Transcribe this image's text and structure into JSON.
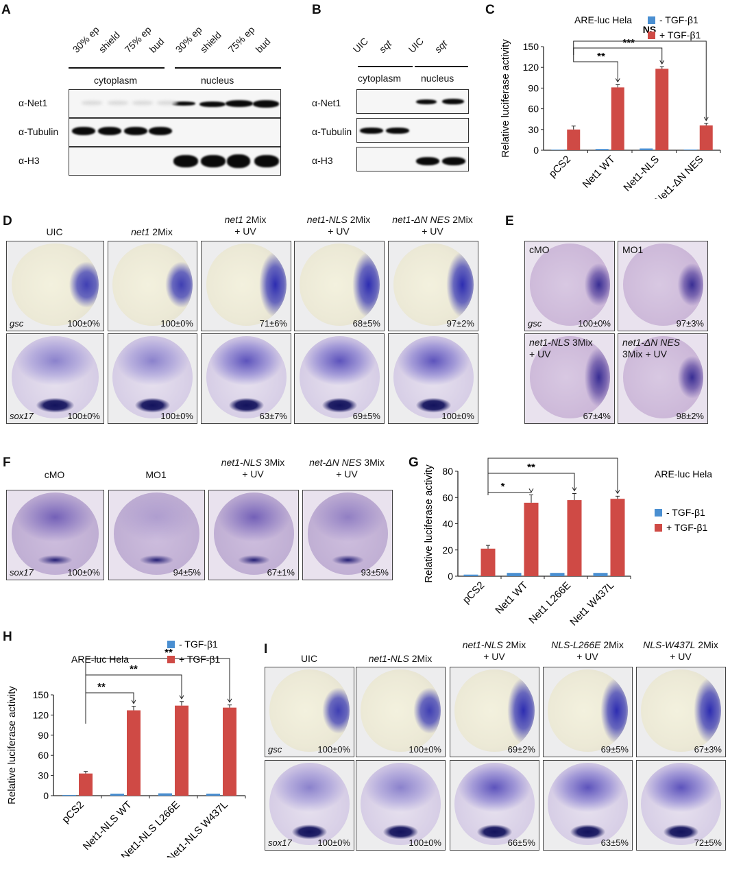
{
  "panels": {
    "A": "A",
    "B": "B",
    "C": "C",
    "D": "D",
    "E": "E",
    "F": "F",
    "G": "G",
    "H": "H",
    "I": "I"
  },
  "blotA": {
    "stages": [
      "30% ep",
      "shield",
      "75% ep",
      "bud",
      "30% ep",
      "shield",
      "75% ep",
      "bud"
    ],
    "fractions": [
      "cytoplasm",
      "nucleus"
    ],
    "rows": [
      "α-Net1",
      "α-Tubulin",
      "α-H3"
    ]
  },
  "blotB": {
    "lanes": [
      "UIC",
      "sqt",
      "UIC",
      "sqt"
    ],
    "fractions": [
      "cytoplasm",
      "nucleus"
    ],
    "rows": [
      "α-Net1",
      "α-Tubulin",
      "α-H3"
    ]
  },
  "chart_data": [
    {
      "id": "C",
      "type": "bar",
      "title": "ARE-luc  Hela",
      "ylabel": "Relative luciferase activity",
      "categories": [
        "pCS2",
        "Net1 WT",
        "Net1-NLS",
        "Net1-ΔN NES"
      ],
      "series": [
        {
          "name": "- TGF-β1",
          "values": [
            0.8,
            1.8,
            2.5,
            1.0
          ],
          "errors": [
            0.3,
            0.5,
            0.5,
            0.4
          ]
        },
        {
          "name": "+ TGF-β1",
          "values": [
            30,
            91,
            118,
            36
          ],
          "errors": [
            5,
            4,
            3,
            3
          ]
        }
      ],
      "ylim": [
        0,
        150
      ],
      "yticks": [
        0,
        30,
        60,
        90,
        120,
        150
      ],
      "significance": [
        {
          "from": "pCS2",
          "to": "Net1 WT",
          "label": "**"
        },
        {
          "from": "pCS2",
          "to": "Net1-NLS",
          "label": "***"
        },
        {
          "from": "pCS2",
          "to": "Net1-ΔN NES",
          "label": "NS"
        }
      ],
      "colors": {
        "neg": "#4a8fd1",
        "pos": "#cf4a45"
      }
    },
    {
      "id": "G",
      "type": "bar",
      "title": "ARE-luc  Hela",
      "ylabel": "Relative luciferase activity",
      "categories": [
        "pCS2",
        "Net1 WT",
        "Net1 L266E",
        "Net1 W437L"
      ],
      "series": [
        {
          "name": "- TGF-β1",
          "values": [
            1.2,
            2.5,
            2.5,
            2.5
          ],
          "errors": [
            0.4,
            0.4,
            0.4,
            0.4
          ]
        },
        {
          "name": "+ TGF-β1",
          "values": [
            21,
            56,
            58,
            59
          ],
          "errors": [
            2.5,
            6,
            5,
            2
          ]
        }
      ],
      "ylim": [
        0,
        80
      ],
      "yticks": [
        0,
        20,
        40,
        60,
        80
      ],
      "significance": [
        {
          "from": "pCS2",
          "to": "Net1 WT",
          "label": "*"
        },
        {
          "from": "pCS2",
          "to": "Net1 L266E",
          "label": "**"
        },
        {
          "from": "pCS2",
          "to": "Net1 W437L",
          "label": "***"
        }
      ],
      "colors": {
        "neg": "#4a8fd1",
        "pos": "#cf4a45"
      }
    },
    {
      "id": "H",
      "type": "bar",
      "title": "ARE-luc  Hela",
      "ylabel": "Relative luciferase activity",
      "categories": [
        "pCS2",
        "Net1-NLS WT",
        "Net1-NLS L266E",
        "Net1-NLS W437L"
      ],
      "series": [
        {
          "name": "- TGF-β1",
          "values": [
            1.0,
            3.0,
            3.5,
            3.0
          ],
          "errors": [
            0.4,
            0.5,
            0.5,
            0.5
          ]
        },
        {
          "name": "+ TGF-β1",
          "values": [
            33,
            127,
            134,
            131
          ],
          "errors": [
            3,
            6,
            6,
            4
          ]
        }
      ],
      "ylim": [
        0,
        150
      ],
      "yticks": [
        0,
        30,
        60,
        90,
        120,
        150
      ],
      "significance": [
        {
          "from": "pCS2",
          "to": "Net1-NLS WT",
          "label": "**"
        },
        {
          "from": "pCS2",
          "to": "Net1-NLS L266E",
          "label": "**"
        },
        {
          "from": "pCS2",
          "to": "Net1-NLS W437L",
          "label": "**"
        }
      ],
      "colors": {
        "neg": "#4a8fd1",
        "pos": "#cf4a45"
      }
    }
  ],
  "panelD": {
    "columns": [
      {
        "italic": "",
        "text": "UIC",
        "line2": ""
      },
      {
        "italic": "net1",
        "text": " 2Mix",
        "line2": ""
      },
      {
        "italic": "net1",
        "text": " 2Mix",
        "line2": "+ UV"
      },
      {
        "italic": "net1-NLS",
        "text": " 2Mix",
        "line2": "+ UV"
      },
      {
        "italic": "net1-ΔN NES",
        "text": " 2Mix",
        "line2": "+ UV"
      }
    ],
    "rows": [
      {
        "gene": "gsc",
        "values": [
          "100±0%",
          "100±0%",
          "71±6%",
          "68±5%",
          "97±2%"
        ]
      },
      {
        "gene": "sox17",
        "values": [
          "100±0%",
          "100±0%",
          "63±7%",
          "69±5%",
          "100±0%"
        ]
      }
    ]
  },
  "panelE": {
    "cells": [
      {
        "label_italic": "",
        "label": "cMO",
        "line2": "",
        "gene": "gsc",
        "value": "100±0%"
      },
      {
        "label_italic": "",
        "label": "MO1",
        "line2": "",
        "gene": "",
        "value": "97±3%"
      },
      {
        "label_italic": "net1-NLS",
        "label": " 3Mix",
        "line2": "+ UV",
        "gene": "",
        "value": "67±4%"
      },
      {
        "label_italic": "net1-ΔN NES",
        "label": "",
        "line2": "3Mix + UV",
        "gene": "",
        "value": "98±2%"
      }
    ]
  },
  "panelF": {
    "columns": [
      {
        "italic": "",
        "text": "cMO",
        "line2": ""
      },
      {
        "italic": "",
        "text": "MO1",
        "line2": ""
      },
      {
        "italic": "net1-NLS",
        "text": " 3Mix",
        "line2": "+ UV"
      },
      {
        "italic": "net-ΔN NES",
        "text": " 3Mix",
        "line2": "+ UV"
      }
    ],
    "gene": "sox17",
    "values": [
      "100±0%",
      "94±5%",
      "67±1%",
      "93±5%"
    ]
  },
  "panelI": {
    "columns": [
      {
        "italic": "",
        "text": "UIC",
        "line2": ""
      },
      {
        "italic": "net1-NLS",
        "text": " 2Mix",
        "line2": ""
      },
      {
        "italic": "net1-NLS",
        "text": " 2Mix",
        "line2": "+ UV"
      },
      {
        "italic": "NLS-L266E",
        "text": " 2Mix",
        "line2": "+ UV"
      },
      {
        "italic": "NLS-W437L",
        "text": " 2Mix",
        "line2": "+ UV"
      }
    ],
    "rows": [
      {
        "gene": "gsc",
        "values": [
          "100±0%",
          "100±0%",
          "69±2%",
          "69±5%",
          "67±3%"
        ]
      },
      {
        "gene": "sox17",
        "values": [
          "100±0%",
          "100±0%",
          "66±5%",
          "63±5%",
          "72±5%"
        ]
      }
    ]
  }
}
